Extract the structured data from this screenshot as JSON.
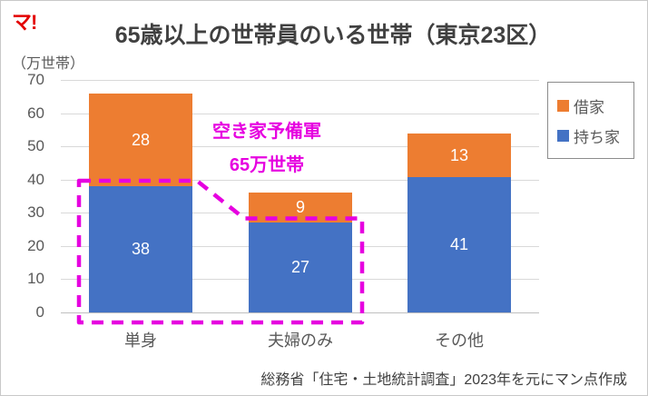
{
  "logo": "マ!",
  "title": "65歳以上の世帯員のいる世帯（東京23区）",
  "y_unit": "（万世帯）",
  "source": "総務省「住宅・土地統計調査」2023年を元にマン点作成",
  "annotation": {
    "line1": "空き家予備軍",
    "line2": "65万世帯",
    "color": "#e600e0"
  },
  "legend": {
    "items": [
      {
        "label": "借家",
        "color": "#ED7D31"
      },
      {
        "label": "持ち家",
        "color": "#4472C4"
      }
    ]
  },
  "chart_data": {
    "type": "bar",
    "stacked": true,
    "title": "65歳以上の世帯員のいる世帯（東京23区）",
    "xlabel": "",
    "ylabel": "（万世帯）",
    "categories": [
      "単身",
      "夫婦のみ",
      "その他"
    ],
    "series": [
      {
        "name": "持ち家",
        "color": "#4472C4",
        "values": [
          38,
          27,
          41
        ]
      },
      {
        "name": "借家",
        "color": "#ED7D31",
        "values": [
          28,
          9,
          13
        ]
      }
    ],
    "totals": [
      66,
      36,
      54
    ],
    "ylim": [
      0,
      70
    ],
    "yticks": [
      0,
      10,
      20,
      30,
      40,
      50,
      60,
      70
    ],
    "grid": true,
    "legend_position": "top-right",
    "annotation_text": "空き家予備軍 65万世帯",
    "annotation_covers": "持ち家 of 単身(38) + 夫婦のみ(27)"
  }
}
